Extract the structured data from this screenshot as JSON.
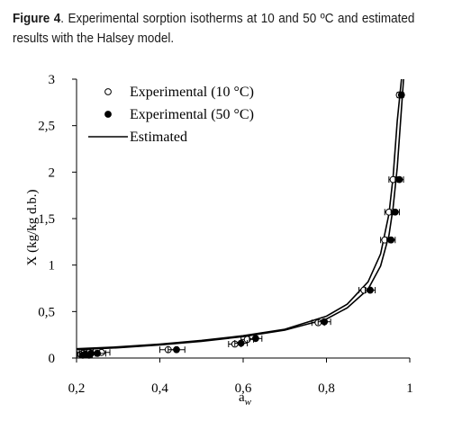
{
  "caption": {
    "label": "Figure 4",
    "text": ". Experimental sorption isotherms at 10 and 50 ºC and estimated results with the Halsey model."
  },
  "chart_data": {
    "type": "scatter",
    "xlabel": "a",
    "xlabel_sub": "w",
    "ylabel": "X (kg/kg d.b.)",
    "xlim": [
      0.2,
      1.0
    ],
    "ylim": [
      0,
      3
    ],
    "x_ticks": [
      "0,2",
      "0,4",
      "0,6",
      "0,8",
      "1"
    ],
    "y_ticks": [
      "0",
      "0,5",
      "1",
      "1,5",
      "2",
      "2,5",
      "3"
    ],
    "legend": {
      "placement": "top-left",
      "entries": [
        "Experimental (10 °C)",
        "Experimental (50 °C)",
        "Estimated"
      ]
    },
    "series": [
      {
        "name": "Experimental (10 °C)",
        "marker": "open-circle",
        "x": [
          0.21,
          0.215,
          0.22,
          0.23,
          0.26,
          0.42,
          0.58,
          0.61,
          0.78,
          0.89,
          0.94,
          0.95,
          0.96,
          0.975
        ],
        "y": [
          0.04,
          0.05,
          0.04,
          0.06,
          0.06,
          0.09,
          0.15,
          0.2,
          0.38,
          0.73,
          1.27,
          1.57,
          1.92,
          2.83
        ],
        "x_err": [
          0.008,
          0.008,
          0.008,
          0.01,
          0.02,
          0.02,
          0.015,
          0.015,
          0.015,
          0.012,
          0.01,
          0.01,
          0.01,
          0.005
        ]
      },
      {
        "name": "Experimental (50 °C)",
        "marker": "filled-circle",
        "x": [
          0.215,
          0.22,
          0.23,
          0.235,
          0.25,
          0.44,
          0.595,
          0.63,
          0.795,
          0.905,
          0.955,
          0.965,
          0.975,
          0.98
        ],
        "y": [
          0.03,
          0.04,
          0.03,
          0.05,
          0.05,
          0.09,
          0.16,
          0.21,
          0.39,
          0.73,
          1.27,
          1.57,
          1.92,
          2.83
        ],
        "x_err": [
          0.008,
          0.008,
          0.008,
          0.01,
          0.02,
          0.02,
          0.015,
          0.015,
          0.015,
          0.012,
          0.01,
          0.01,
          0.01,
          0.005
        ]
      }
    ],
    "curves": [
      {
        "name": "Estimated",
        "model": "Halsey",
        "x": [
          0.2,
          0.3,
          0.4,
          0.5,
          0.6,
          0.7,
          0.8,
          0.85,
          0.9,
          0.93,
          0.95,
          0.96,
          0.97,
          0.98
        ],
        "y": [
          0.1,
          0.12,
          0.15,
          0.19,
          0.24,
          0.31,
          0.45,
          0.58,
          0.82,
          1.12,
          1.55,
          1.95,
          2.55,
          3.0
        ]
      },
      {
        "name": "Estimated",
        "model": "Halsey",
        "x": [
          0.2,
          0.3,
          0.4,
          0.5,
          0.6,
          0.7,
          0.8,
          0.85,
          0.9,
          0.93,
          0.95,
          0.96,
          0.97,
          0.978,
          0.985
        ],
        "y": [
          0.09,
          0.11,
          0.14,
          0.18,
          0.23,
          0.3,
          0.42,
          0.54,
          0.74,
          0.99,
          1.32,
          1.62,
          2.05,
          2.55,
          3.0
        ]
      }
    ]
  }
}
